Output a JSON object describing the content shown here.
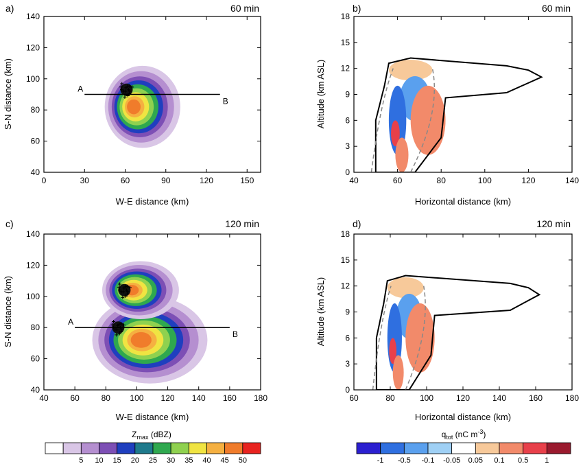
{
  "chart_data": [
    {
      "type": "contour",
      "panel_label": "a)",
      "time_label": "60 min",
      "xlabel": "W-E distance (km)",
      "ylabel": "S-N distance (km)",
      "xlim": [
        0,
        160
      ],
      "ylim": [
        40,
        140
      ],
      "xticks": [
        0,
        30,
        60,
        90,
        120,
        150
      ],
      "yticks": [
        40,
        60,
        80,
        100,
        120,
        140
      ],
      "section": {
        "start_label": "A",
        "end_label": "B",
        "x": [
          30,
          130
        ],
        "y": [
          90,
          90
        ]
      },
      "storm_cells": [
        {
          "cx": 70,
          "cy": 82,
          "rx": 18,
          "ry": 17
        }
      ],
      "marker_clusters": [
        {
          "cx": 61,
          "cy": 93
        }
      ]
    },
    {
      "type": "contour",
      "panel_label": "b)",
      "time_label": "60 min",
      "xlabel": "Horizontal distance (km)",
      "ylabel": "Altitude (km ASL)",
      "xlim": [
        40,
        140
      ],
      "ylim": [
        0,
        18
      ],
      "xticks": [
        40,
        60,
        80,
        100,
        120,
        140
      ],
      "yticks": [
        0,
        3,
        6,
        9,
        12,
        15,
        18
      ]
    },
    {
      "type": "contour",
      "panel_label": "c)",
      "time_label": "120 min",
      "xlabel": "W-E distance (km)",
      "ylabel": "S-N distance (km)",
      "xlim": [
        40,
        180
      ],
      "ylim": [
        40,
        140
      ],
      "xticks": [
        40,
        60,
        80,
        100,
        120,
        140,
        160,
        180
      ],
      "yticks": [
        40,
        60,
        80,
        100,
        120,
        140
      ],
      "section": {
        "start_label": "A",
        "end_label": "B",
        "x": [
          60,
          160
        ],
        "y": [
          80,
          80
        ]
      },
      "storm_cells": [
        {
          "cx": 106,
          "cy": 72,
          "rx": 24,
          "ry": 18
        },
        {
          "cx": 100,
          "cy": 104,
          "rx": 16,
          "ry": 12
        }
      ],
      "marker_clusters": [
        {
          "cx": 88,
          "cy": 80
        },
        {
          "cx": 92,
          "cy": 104
        }
      ]
    },
    {
      "type": "contour",
      "panel_label": "d)",
      "time_label": "120 min",
      "xlabel": "Horizontal distance (km)",
      "ylabel": "Altitude (km ASL)",
      "xlim": [
        60,
        180
      ],
      "ylim": [
        0,
        18
      ],
      "xticks": [
        60,
        80,
        100,
        120,
        140,
        160,
        180
      ],
      "yticks": [
        0,
        3,
        6,
        9,
        12,
        15,
        18
      ]
    }
  ],
  "colorbars": {
    "zmax": {
      "title_main": "Z",
      "title_sub": "max",
      "title_unit": " (dBZ)",
      "levels": [
        "5",
        "10",
        "15",
        "20",
        "25",
        "30",
        "35",
        "40",
        "45",
        "50"
      ],
      "colors": [
        "#ffffff",
        "#d9c6e6",
        "#b58fd0",
        "#7d4fb5",
        "#1f3fbf",
        "#1f7a8c",
        "#2fa84f",
        "#8fd14f",
        "#f0e442",
        "#f5b041",
        "#f07c2b",
        "#e8231f"
      ]
    },
    "qtot": {
      "title_main": "q",
      "title_sub": "tot",
      "title_unit": " (nC m",
      "title_sup": "-3",
      "title_end": ")",
      "levels": [
        "-1",
        "-0.5",
        "-0.1",
        "-0.05",
        "0.05",
        "0.1",
        "0.5",
        "1"
      ],
      "colors": [
        "#2b1fd0",
        "#2f6fe0",
        "#5aa0ee",
        "#9fd0f5",
        "#ffffff",
        "#f7c99a",
        "#f28a6a",
        "#e8404a",
        "#9a1a2e"
      ]
    }
  }
}
